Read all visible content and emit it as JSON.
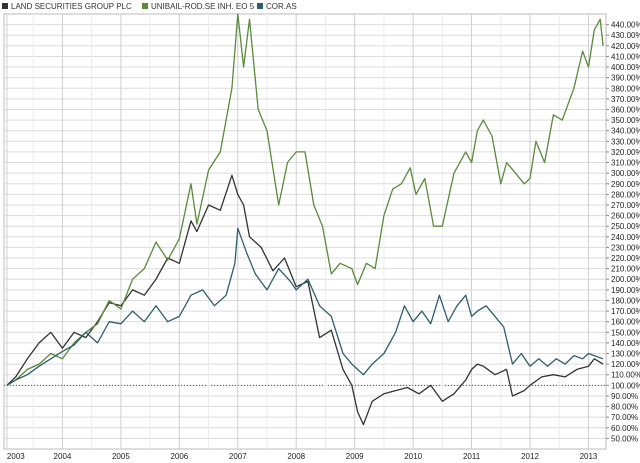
{
  "chart_data": {
    "type": "line",
    "legend_position": "top-left",
    "grid": true,
    "y_axis_side": "right",
    "ylim": [
      40,
      450
    ],
    "xlim": [
      2003.0,
      2013.3
    ],
    "y_ticks": [
      50,
      60,
      70,
      80,
      90,
      100,
      110,
      120,
      130,
      140,
      150,
      160,
      170,
      180,
      190,
      200,
      210,
      220,
      230,
      240,
      250,
      260,
      270,
      280,
      290,
      300,
      310,
      320,
      330,
      340,
      350,
      360,
      370,
      380,
      390,
      400,
      410,
      420,
      430,
      440
    ],
    "y_tick_suffix": ".00%",
    "x_ticks": [
      {
        "label": "2003",
        "value": 2003.05
      },
      {
        "label": "2004",
        "value": 2004.0
      },
      {
        "label": "2005",
        "value": 2005.0
      },
      {
        "label": "2006",
        "value": 2006.0
      },
      {
        "label": "2007",
        "value": 2007.0
      },
      {
        "label": "2008",
        "value": 2008.0
      },
      {
        "label": "2009",
        "value": 2009.0
      },
      {
        "label": "2010",
        "value": 2010.0
      },
      {
        "label": "2011",
        "value": 2011.0
      },
      {
        "label": "2012",
        "value": 2012.0
      },
      {
        "label": "2013",
        "value": 2013.0
      }
    ],
    "baseline": 100,
    "series": [
      {
        "name": "LAND SECURITIES GROUP PLC",
        "color": "#333333",
        "points": [
          [
            2003.05,
            100
          ],
          [
            2003.2,
            108
          ],
          [
            2003.4,
            125
          ],
          [
            2003.6,
            140
          ],
          [
            2003.8,
            150
          ],
          [
            2004.0,
            135
          ],
          [
            2004.2,
            150
          ],
          [
            2004.4,
            145
          ],
          [
            2004.6,
            160
          ],
          [
            2004.8,
            178
          ],
          [
            2005.0,
            175
          ],
          [
            2005.2,
            190
          ],
          [
            2005.4,
            185
          ],
          [
            2005.6,
            200
          ],
          [
            2005.8,
            220
          ],
          [
            2006.0,
            215
          ],
          [
            2006.2,
            255
          ],
          [
            2006.3,
            245
          ],
          [
            2006.5,
            270
          ],
          [
            2006.7,
            265
          ],
          [
            2006.9,
            298
          ],
          [
            2007.0,
            280
          ],
          [
            2007.1,
            270
          ],
          [
            2007.2,
            240
          ],
          [
            2007.4,
            230
          ],
          [
            2007.6,
            208
          ],
          [
            2007.8,
            220
          ],
          [
            2008.0,
            193
          ],
          [
            2008.2,
            198
          ],
          [
            2008.4,
            145
          ],
          [
            2008.6,
            152
          ],
          [
            2008.8,
            115
          ],
          [
            2008.95,
            100
          ],
          [
            2009.05,
            75
          ],
          [
            2009.15,
            63
          ],
          [
            2009.3,
            85
          ],
          [
            2009.5,
            92
          ],
          [
            2009.7,
            95
          ],
          [
            2009.9,
            98
          ],
          [
            2010.1,
            92
          ],
          [
            2010.3,
            100
          ],
          [
            2010.5,
            85
          ],
          [
            2010.7,
            92
          ],
          [
            2010.9,
            105
          ],
          [
            2011.0,
            115
          ],
          [
            2011.1,
            120
          ],
          [
            2011.2,
            118
          ],
          [
            2011.4,
            110
          ],
          [
            2011.6,
            115
          ],
          [
            2011.7,
            90
          ],
          [
            2011.9,
            95
          ],
          [
            2012.0,
            100
          ],
          [
            2012.2,
            108
          ],
          [
            2012.4,
            110
          ],
          [
            2012.6,
            108
          ],
          [
            2012.8,
            115
          ],
          [
            2013.0,
            118
          ],
          [
            2013.1,
            125
          ],
          [
            2013.25,
            120
          ]
        ]
      },
      {
        "name": "UNIBAIL-ROD.SE INH. EO 5",
        "color": "#5b8a3c",
        "points": [
          [
            2003.05,
            100
          ],
          [
            2003.2,
            105
          ],
          [
            2003.4,
            115
          ],
          [
            2003.6,
            120
          ],
          [
            2003.8,
            130
          ],
          [
            2004.0,
            125
          ],
          [
            2004.2,
            140
          ],
          [
            2004.4,
            150
          ],
          [
            2004.6,
            158
          ],
          [
            2004.8,
            180
          ],
          [
            2005.0,
            172
          ],
          [
            2005.2,
            200
          ],
          [
            2005.4,
            210
          ],
          [
            2005.6,
            235
          ],
          [
            2005.8,
            218
          ],
          [
            2006.0,
            238
          ],
          [
            2006.2,
            290
          ],
          [
            2006.3,
            252
          ],
          [
            2006.5,
            303
          ],
          [
            2006.7,
            320
          ],
          [
            2006.9,
            380
          ],
          [
            2007.0,
            450
          ],
          [
            2007.1,
            400
          ],
          [
            2007.2,
            445
          ],
          [
            2007.35,
            360
          ],
          [
            2007.5,
            340
          ],
          [
            2007.7,
            270
          ],
          [
            2007.85,
            310
          ],
          [
            2008.0,
            320
          ],
          [
            2008.15,
            320
          ],
          [
            2008.3,
            270
          ],
          [
            2008.45,
            250
          ],
          [
            2008.6,
            205
          ],
          [
            2008.75,
            215
          ],
          [
            2008.95,
            210
          ],
          [
            2009.05,
            195
          ],
          [
            2009.2,
            215
          ],
          [
            2009.35,
            210
          ],
          [
            2009.5,
            260
          ],
          [
            2009.65,
            285
          ],
          [
            2009.8,
            290
          ],
          [
            2009.95,
            305
          ],
          [
            2010.05,
            280
          ],
          [
            2010.2,
            295
          ],
          [
            2010.35,
            250
          ],
          [
            2010.5,
            250
          ],
          [
            2010.7,
            300
          ],
          [
            2010.9,
            320
          ],
          [
            2011.0,
            310
          ],
          [
            2011.1,
            340
          ],
          [
            2011.2,
            350
          ],
          [
            2011.35,
            335
          ],
          [
            2011.5,
            290
          ],
          [
            2011.6,
            310
          ],
          [
            2011.75,
            300
          ],
          [
            2011.9,
            290
          ],
          [
            2012.0,
            295
          ],
          [
            2012.1,
            330
          ],
          [
            2012.25,
            310
          ],
          [
            2012.4,
            355
          ],
          [
            2012.55,
            350
          ],
          [
            2012.75,
            380
          ],
          [
            2012.9,
            415
          ],
          [
            2013.0,
            400
          ],
          [
            2013.1,
            435
          ],
          [
            2013.2,
            445
          ],
          [
            2013.25,
            420
          ]
        ]
      },
      {
        "name": "COR.AS",
        "color": "#2e5e6e",
        "points": [
          [
            2003.05,
            100
          ],
          [
            2003.2,
            105
          ],
          [
            2003.4,
            110
          ],
          [
            2003.6,
            118
          ],
          [
            2003.8,
            125
          ],
          [
            2004.0,
            132
          ],
          [
            2004.2,
            138
          ],
          [
            2004.4,
            150
          ],
          [
            2004.6,
            140
          ],
          [
            2004.8,
            160
          ],
          [
            2005.0,
            158
          ],
          [
            2005.2,
            170
          ],
          [
            2005.4,
            160
          ],
          [
            2005.6,
            175
          ],
          [
            2005.8,
            160
          ],
          [
            2006.0,
            165
          ],
          [
            2006.2,
            185
          ],
          [
            2006.4,
            190
          ],
          [
            2006.6,
            175
          ],
          [
            2006.8,
            185
          ],
          [
            2006.95,
            215
          ],
          [
            2007.0,
            248
          ],
          [
            2007.15,
            225
          ],
          [
            2007.3,
            205
          ],
          [
            2007.5,
            190
          ],
          [
            2007.7,
            210
          ],
          [
            2007.9,
            198
          ],
          [
            2008.0,
            190
          ],
          [
            2008.2,
            200
          ],
          [
            2008.4,
            175
          ],
          [
            2008.6,
            165
          ],
          [
            2008.8,
            130
          ],
          [
            2008.95,
            120
          ],
          [
            2009.05,
            115
          ],
          [
            2009.15,
            110
          ],
          [
            2009.3,
            120
          ],
          [
            2009.5,
            130
          ],
          [
            2009.7,
            150
          ],
          [
            2009.85,
            175
          ],
          [
            2010.0,
            160
          ],
          [
            2010.15,
            170
          ],
          [
            2010.3,
            158
          ],
          [
            2010.45,
            185
          ],
          [
            2010.6,
            160
          ],
          [
            2010.75,
            175
          ],
          [
            2010.9,
            185
          ],
          [
            2011.0,
            165
          ],
          [
            2011.1,
            170
          ],
          [
            2011.25,
            175
          ],
          [
            2011.4,
            165
          ],
          [
            2011.55,
            155
          ],
          [
            2011.7,
            120
          ],
          [
            2011.85,
            130
          ],
          [
            2012.0,
            118
          ],
          [
            2012.15,
            125
          ],
          [
            2012.3,
            118
          ],
          [
            2012.45,
            125
          ],
          [
            2012.6,
            120
          ],
          [
            2012.75,
            128
          ],
          [
            2012.9,
            125
          ],
          [
            2013.0,
            130
          ],
          [
            2013.1,
            128
          ],
          [
            2013.25,
            125
          ]
        ]
      }
    ]
  }
}
